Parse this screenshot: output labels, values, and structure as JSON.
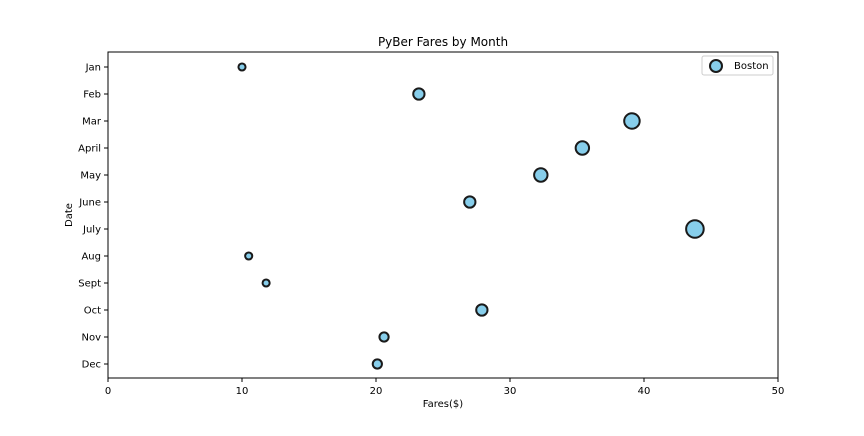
{
  "chart_data": {
    "type": "scatter",
    "title": "PyBer Fares by Month",
    "xlabel": "Fares($)",
    "ylabel": "Date",
    "xlim": [
      0,
      50
    ],
    "xticks": [
      0,
      10,
      20,
      30,
      40,
      50
    ],
    "categories": [
      "Jan",
      "Feb",
      "Mar",
      "April",
      "May",
      "June",
      "July",
      "Aug",
      "Sept",
      "Oct",
      "Nov",
      "Dec"
    ],
    "grid": false,
    "legend_position": "top-right",
    "series": [
      {
        "name": "Boston",
        "color": "#87ceeb",
        "edgecolor": "#1a1a1a",
        "x": [
          10.0,
          23.2,
          39.1,
          35.4,
          32.3,
          27.0,
          43.8,
          10.5,
          11.8,
          27.9,
          20.6,
          20.1
        ],
        "size_rank": [
          1,
          3,
          5,
          4,
          4,
          3,
          6,
          1,
          1,
          3,
          2,
          2
        ]
      }
    ]
  }
}
